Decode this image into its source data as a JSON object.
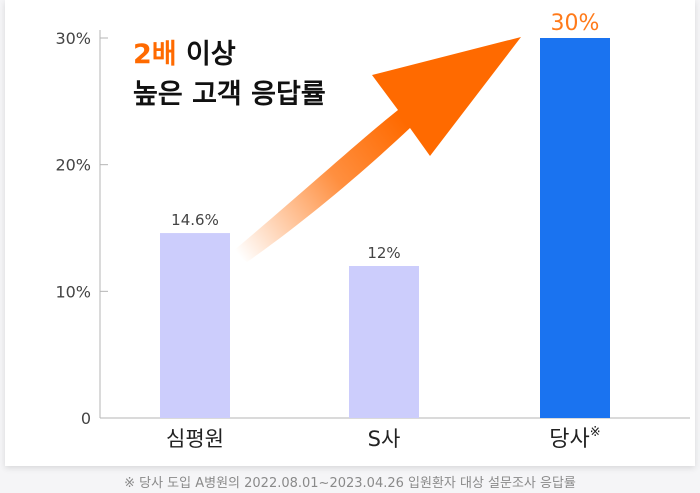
{
  "chart_data": {
    "type": "bar",
    "categories": [
      "심평원",
      "S사",
      "당사"
    ],
    "category_suffix": [
      "",
      "",
      "※"
    ],
    "values": [
      14.6,
      12,
      30
    ],
    "value_labels": [
      "14.6%",
      "12%",
      "30%"
    ],
    "yticks": [
      0,
      10,
      20,
      30
    ],
    "ytick_labels": [
      "0",
      "10%",
      "20%",
      "30%"
    ],
    "ylim": [
      0,
      30
    ],
    "grid": false,
    "bar_colors": [
      "#cccdfc",
      "#cccdfc",
      "#1a73f0"
    ],
    "highlight_index": 2,
    "highlight_label_color": "#ff7a1a"
  },
  "annotation": {
    "highlight": "2배",
    "rest_line1": " 이상",
    "line2": "높은 고객 응답률",
    "highlight_color": "#ff6a00",
    "arrow_color": "#ff6a00"
  },
  "footnote": "※ 당사 도입 A병원의 2022.08.01~2023.04.26 입원환자 대상 설문조사 응답률"
}
